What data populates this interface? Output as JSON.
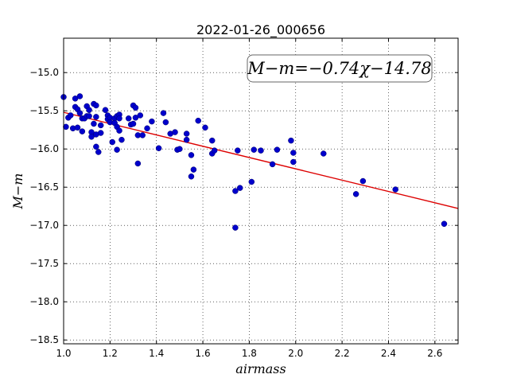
{
  "chart_data": {
    "type": "scatter",
    "title": "2022-01-26_000656",
    "xlabel": "airmass",
    "ylabel": "M−m",
    "xlim": [
      1.0,
      2.7
    ],
    "ylim": [
      -18.55,
      -14.55
    ],
    "xticks": [
      1.0,
      1.2,
      1.4,
      1.6,
      1.8,
      2.0,
      2.2,
      2.4,
      2.6
    ],
    "xtick_labels": [
      "1.0",
      "1.2",
      "1.4",
      "1.6",
      "1.8",
      "2.0",
      "2.2",
      "2.4",
      "2.6"
    ],
    "yticks": [
      -15.0,
      -15.5,
      -16.0,
      -16.5,
      -17.0,
      -17.5,
      -18.0,
      -18.5
    ],
    "ytick_labels": [
      "−15.0",
      "−15.5",
      "−16.0",
      "−16.5",
      "−17.0",
      "−17.5",
      "−18.0",
      "−18.5"
    ],
    "grid": true,
    "annotation": "M−m=−0.74χ−14.78",
    "fit": {
      "slope": -0.74,
      "intercept": -14.78,
      "color": "#dd0000"
    },
    "point_color": "#0000cc",
    "points": [
      [
        1.0,
        -15.32
      ],
      [
        1.01,
        -15.71
      ],
      [
        1.02,
        -15.59
      ],
      [
        1.03,
        -15.56
      ],
      [
        1.04,
        -15.73
      ],
      [
        1.05,
        -15.34
      ],
      [
        1.05,
        -15.45
      ],
      [
        1.06,
        -15.48
      ],
      [
        1.06,
        -15.72
      ],
      [
        1.07,
        -15.31
      ],
      [
        1.07,
        -15.53
      ],
      [
        1.08,
        -15.6
      ],
      [
        1.08,
        -15.77
      ],
      [
        1.09,
        -15.6
      ],
      [
        1.1,
        -15.57
      ],
      [
        1.1,
        -15.44
      ],
      [
        1.11,
        -15.49
      ],
      [
        1.11,
        -15.57
      ],
      [
        1.12,
        -15.78
      ],
      [
        1.12,
        -15.84
      ],
      [
        1.13,
        -15.41
      ],
      [
        1.13,
        -15.67
      ],
      [
        1.14,
        -15.43
      ],
      [
        1.14,
        -15.58
      ],
      [
        1.14,
        -15.81
      ],
      [
        1.14,
        -15.97
      ],
      [
        1.15,
        -16.04
      ],
      [
        1.16,
        -15.69
      ],
      [
        1.16,
        -15.79
      ],
      [
        1.18,
        -15.49
      ],
      [
        1.19,
        -15.56
      ],
      [
        1.19,
        -15.61
      ],
      [
        1.2,
        -15.59
      ],
      [
        1.2,
        -15.65
      ],
      [
        1.21,
        -15.91
      ],
      [
        1.22,
        -15.6
      ],
      [
        1.22,
        -15.66
      ],
      [
        1.23,
        -15.57
      ],
      [
        1.23,
        -15.71
      ],
      [
        1.23,
        -16.01
      ],
      [
        1.24,
        -15.55
      ],
      [
        1.24,
        -15.6
      ],
      [
        1.24,
        -15.76
      ],
      [
        1.25,
        -15.88
      ],
      [
        1.28,
        -15.6
      ],
      [
        1.29,
        -15.68
      ],
      [
        1.3,
        -15.43
      ],
      [
        1.3,
        -15.67
      ],
      [
        1.31,
        -15.46
      ],
      [
        1.31,
        -15.59
      ],
      [
        1.32,
        -15.82
      ],
      [
        1.32,
        -16.19
      ],
      [
        1.33,
        -15.56
      ],
      [
        1.34,
        -15.82
      ],
      [
        1.36,
        -15.73
      ],
      [
        1.38,
        -15.64
      ],
      [
        1.41,
        -15.99
      ],
      [
        1.43,
        -15.53
      ],
      [
        1.44,
        -15.65
      ],
      [
        1.46,
        -15.8
      ],
      [
        1.48,
        -15.78
      ],
      [
        1.49,
        -16.01
      ],
      [
        1.5,
        -16.0
      ],
      [
        1.53,
        -15.88
      ],
      [
        1.53,
        -15.8
      ],
      [
        1.55,
        -16.08
      ],
      [
        1.55,
        -16.36
      ],
      [
        1.56,
        -16.27
      ],
      [
        1.58,
        -15.63
      ],
      [
        1.61,
        -15.72
      ],
      [
        1.64,
        -15.89
      ],
      [
        1.64,
        -16.06
      ],
      [
        1.65,
        -16.02
      ],
      [
        1.74,
        -16.55
      ],
      [
        1.74,
        -17.03
      ],
      [
        1.75,
        -16.02
      ],
      [
        1.76,
        -16.51
      ],
      [
        1.81,
        -16.43
      ],
      [
        1.82,
        -16.01
      ],
      [
        1.85,
        -16.02
      ],
      [
        1.9,
        -16.2
      ],
      [
        1.92,
        -16.01
      ],
      [
        1.98,
        -15.89
      ],
      [
        1.99,
        -16.17
      ],
      [
        1.99,
        -16.05
      ],
      [
        2.12,
        -16.06
      ],
      [
        2.26,
        -16.59
      ],
      [
        2.29,
        -16.42
      ],
      [
        2.43,
        -16.53
      ],
      [
        2.64,
        -16.98
      ]
    ]
  }
}
